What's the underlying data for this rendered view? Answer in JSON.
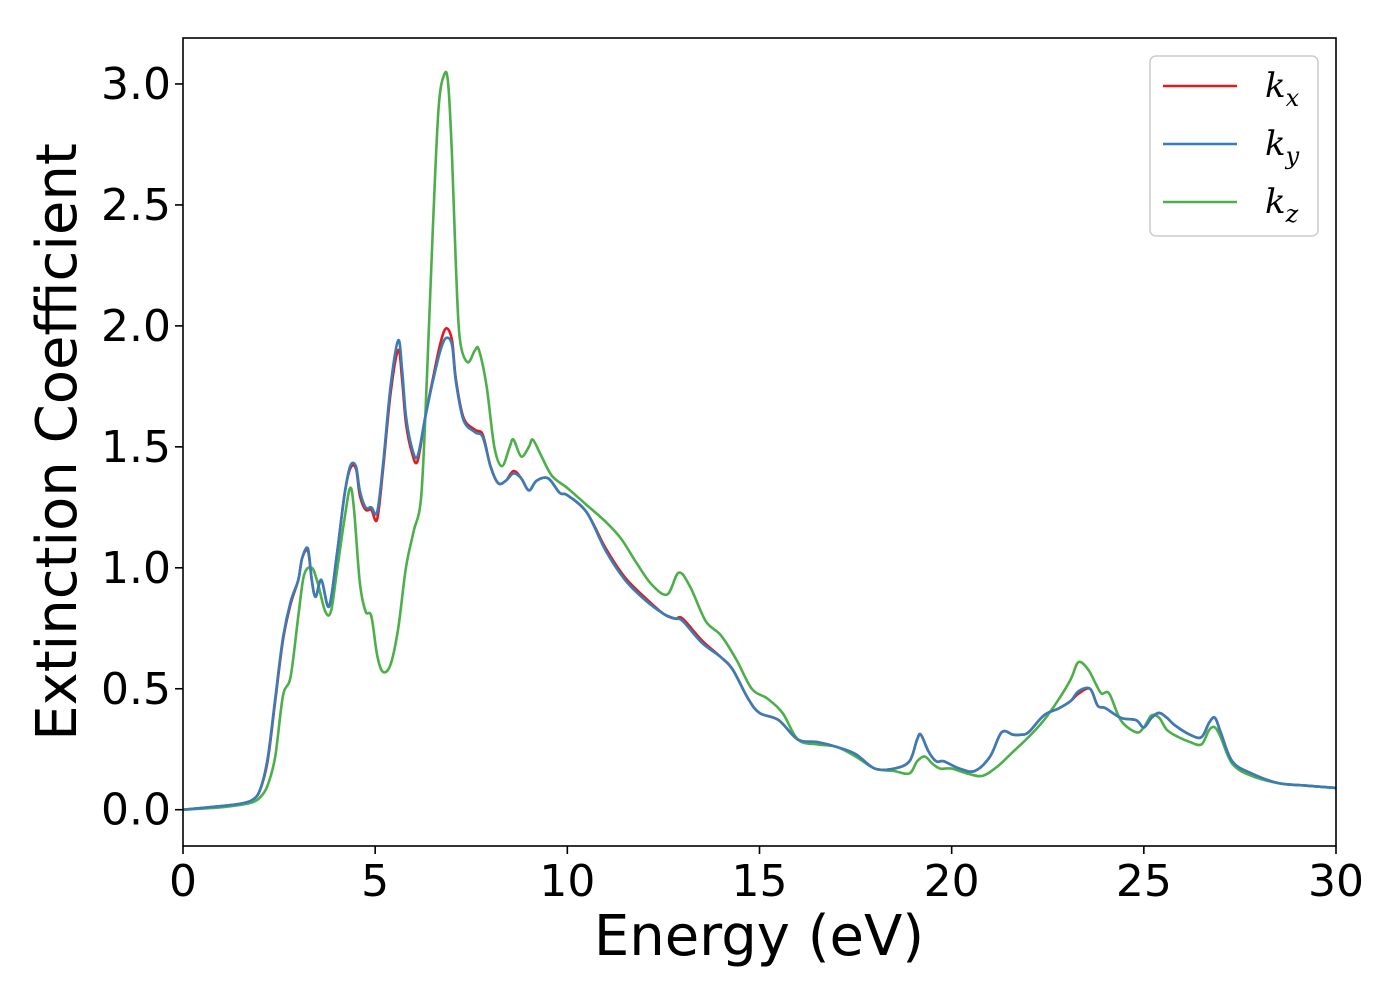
{
  "chart_data": {
    "type": "line",
    "xlabel": "Energy (eV)",
    "ylabel": "Extinction Coefficient",
    "xlim": [
      0,
      30
    ],
    "ylim": [
      -0.15,
      3.19
    ],
    "xticks": [
      "0",
      "5",
      "10",
      "15",
      "20",
      "25",
      "30"
    ],
    "yticks": [
      "0.0",
      "0.5",
      "1.0",
      "1.5",
      "2.0",
      "2.5",
      "3.0"
    ],
    "grid": false,
    "legend_position": "top-right",
    "series": [
      {
        "name": "k_x",
        "legend_base": "k",
        "legend_sub": "x",
        "color": "#e41a1c",
        "x": [
          0,
          1.0,
          1.5,
          1.8,
          2.0,
          2.2,
          2.4,
          2.6,
          2.8,
          3.0,
          3.1,
          3.25,
          3.35,
          3.45,
          3.6,
          3.8,
          4.0,
          4.2,
          4.35,
          4.5,
          4.6,
          4.75,
          4.9,
          5.05,
          5.2,
          5.4,
          5.6,
          5.7,
          5.8,
          5.95,
          6.1,
          6.3,
          6.5,
          6.7,
          6.85,
          7.0,
          7.1,
          7.3,
          7.6,
          7.8,
          8.0,
          8.2,
          8.4,
          8.6,
          8.8,
          9.0,
          9.2,
          9.5,
          9.8,
          10.0,
          10.5,
          11.0,
          11.5,
          12.0,
          12.5,
          12.8,
          13.0,
          13.5,
          14.0,
          14.3,
          14.7,
          15.0,
          15.5,
          16.0,
          16.5,
          17.0,
          17.5,
          18.0,
          18.5,
          18.9,
          19.1,
          19.2,
          19.4,
          19.6,
          19.8,
          20.2,
          20.6,
          21.0,
          21.3,
          21.6,
          21.8,
          22.0,
          22.4,
          22.8,
          23.1,
          23.3,
          23.6,
          23.8,
          24.0,
          24.4,
          24.8,
          25.0,
          25.2,
          25.4,
          25.6,
          25.8,
          26.2,
          26.5,
          26.7,
          26.85,
          27.0,
          27.3,
          27.8,
          28.5,
          29.2,
          30.0
        ],
        "y": [
          0.0,
          0.015,
          0.025,
          0.04,
          0.08,
          0.2,
          0.45,
          0.7,
          0.85,
          0.95,
          1.04,
          1.07,
          0.95,
          0.88,
          0.95,
          0.84,
          1.05,
          1.3,
          1.41,
          1.41,
          1.3,
          1.24,
          1.24,
          1.2,
          1.4,
          1.72,
          1.9,
          1.78,
          1.6,
          1.48,
          1.44,
          1.62,
          1.78,
          1.93,
          1.99,
          1.94,
          1.78,
          1.62,
          1.57,
          1.55,
          1.42,
          1.35,
          1.36,
          1.4,
          1.37,
          1.32,
          1.36,
          1.37,
          1.31,
          1.3,
          1.23,
          1.08,
          0.96,
          0.88,
          0.81,
          0.79,
          0.79,
          0.7,
          0.63,
          0.58,
          0.46,
          0.4,
          0.37,
          0.29,
          0.28,
          0.26,
          0.23,
          0.17,
          0.17,
          0.2,
          0.29,
          0.31,
          0.24,
          0.2,
          0.2,
          0.17,
          0.16,
          0.22,
          0.32,
          0.31,
          0.31,
          0.32,
          0.39,
          0.42,
          0.45,
          0.48,
          0.5,
          0.43,
          0.42,
          0.38,
          0.37,
          0.34,
          0.38,
          0.4,
          0.38,
          0.35,
          0.31,
          0.3,
          0.36,
          0.38,
          0.32,
          0.2,
          0.15,
          0.11,
          0.1,
          0.09
        ]
      },
      {
        "name": "k_y",
        "legend_base": "k",
        "legend_sub": "y",
        "color": "#377eb8",
        "x": [
          0,
          1.0,
          1.5,
          1.8,
          2.0,
          2.2,
          2.4,
          2.6,
          2.8,
          3.0,
          3.1,
          3.25,
          3.35,
          3.45,
          3.6,
          3.8,
          4.0,
          4.2,
          4.35,
          4.5,
          4.6,
          4.75,
          4.9,
          5.05,
          5.2,
          5.4,
          5.6,
          5.7,
          5.8,
          5.95,
          6.1,
          6.3,
          6.5,
          6.7,
          6.85,
          7.0,
          7.1,
          7.3,
          7.6,
          7.8,
          8.0,
          8.2,
          8.4,
          8.6,
          8.8,
          9.0,
          9.2,
          9.5,
          9.8,
          10.0,
          10.5,
          11.0,
          11.5,
          12.0,
          12.5,
          12.8,
          13.0,
          13.5,
          14.0,
          14.3,
          14.7,
          15.0,
          15.5,
          16.0,
          16.5,
          17.0,
          17.5,
          18.0,
          18.5,
          18.9,
          19.1,
          19.2,
          19.4,
          19.6,
          19.8,
          20.2,
          20.6,
          21.0,
          21.3,
          21.6,
          21.8,
          22.0,
          22.4,
          22.8,
          23.1,
          23.3,
          23.6,
          23.8,
          24.0,
          24.4,
          24.8,
          25.0,
          25.2,
          25.4,
          25.6,
          25.8,
          26.2,
          26.5,
          26.7,
          26.85,
          27.0,
          27.3,
          27.8,
          28.5,
          29.2,
          30.0
        ],
        "y": [
          0.0,
          0.015,
          0.025,
          0.04,
          0.08,
          0.21,
          0.46,
          0.71,
          0.86,
          0.95,
          1.04,
          1.08,
          0.95,
          0.88,
          0.95,
          0.84,
          1.05,
          1.3,
          1.42,
          1.42,
          1.32,
          1.25,
          1.25,
          1.23,
          1.42,
          1.75,
          1.94,
          1.82,
          1.63,
          1.5,
          1.46,
          1.62,
          1.77,
          1.9,
          1.95,
          1.92,
          1.77,
          1.61,
          1.56,
          1.54,
          1.42,
          1.35,
          1.36,
          1.39,
          1.37,
          1.32,
          1.36,
          1.37,
          1.31,
          1.3,
          1.23,
          1.07,
          0.95,
          0.87,
          0.81,
          0.79,
          0.78,
          0.69,
          0.63,
          0.58,
          0.46,
          0.4,
          0.37,
          0.29,
          0.28,
          0.26,
          0.23,
          0.17,
          0.17,
          0.2,
          0.29,
          0.31,
          0.24,
          0.2,
          0.2,
          0.17,
          0.16,
          0.22,
          0.32,
          0.31,
          0.31,
          0.32,
          0.39,
          0.42,
          0.45,
          0.49,
          0.5,
          0.43,
          0.42,
          0.38,
          0.37,
          0.34,
          0.38,
          0.4,
          0.38,
          0.35,
          0.31,
          0.3,
          0.36,
          0.38,
          0.32,
          0.2,
          0.15,
          0.11,
          0.1,
          0.09
        ]
      },
      {
        "name": "k_z",
        "legend_base": "k",
        "legend_sub": "z",
        "color": "#4daf4a",
        "x": [
          0,
          1.0,
          1.5,
          1.8,
          2.0,
          2.2,
          2.4,
          2.6,
          2.8,
          3.0,
          3.15,
          3.35,
          3.5,
          3.7,
          3.85,
          4.0,
          4.2,
          4.35,
          4.45,
          4.6,
          4.75,
          4.9,
          5.05,
          5.2,
          5.4,
          5.6,
          5.8,
          6.0,
          6.2,
          6.35,
          6.5,
          6.65,
          6.8,
          6.9,
          7.0,
          7.1,
          7.2,
          7.4,
          7.6,
          7.7,
          7.9,
          8.1,
          8.3,
          8.5,
          8.6,
          8.8,
          9.0,
          9.1,
          9.3,
          9.6,
          10.0,
          10.5,
          11.0,
          11.4,
          11.8,
          12.2,
          12.6,
          12.9,
          13.2,
          13.6,
          14.0,
          14.4,
          14.8,
          15.2,
          15.6,
          16.0,
          16.5,
          17.0,
          17.5,
          18.0,
          18.5,
          18.9,
          19.1,
          19.3,
          19.5,
          19.7,
          20.0,
          20.4,
          20.8,
          21.2,
          21.6,
          22.0,
          22.4,
          22.8,
          23.1,
          23.3,
          23.55,
          23.75,
          23.9,
          24.1,
          24.4,
          24.8,
          25.0,
          25.2,
          25.4,
          25.6,
          25.9,
          26.2,
          26.5,
          26.7,
          26.85,
          27.0,
          27.3,
          27.8,
          28.5,
          29.2,
          30.0
        ],
        "y": [
          0.0,
          0.01,
          0.02,
          0.03,
          0.05,
          0.1,
          0.22,
          0.47,
          0.55,
          0.8,
          0.97,
          1.0,
          0.94,
          0.82,
          0.82,
          0.98,
          1.2,
          1.33,
          1.24,
          0.94,
          0.82,
          0.8,
          0.64,
          0.57,
          0.6,
          0.75,
          1.0,
          1.15,
          1.3,
          1.8,
          2.4,
          2.9,
          3.04,
          3.0,
          2.7,
          2.25,
          1.95,
          1.85,
          1.9,
          1.9,
          1.75,
          1.5,
          1.42,
          1.5,
          1.53,
          1.46,
          1.5,
          1.53,
          1.47,
          1.38,
          1.33,
          1.26,
          1.19,
          1.12,
          1.02,
          0.93,
          0.89,
          0.98,
          0.92,
          0.78,
          0.72,
          0.62,
          0.5,
          0.46,
          0.4,
          0.29,
          0.27,
          0.26,
          0.22,
          0.17,
          0.16,
          0.15,
          0.2,
          0.22,
          0.19,
          0.17,
          0.17,
          0.15,
          0.14,
          0.18,
          0.24,
          0.3,
          0.37,
          0.46,
          0.54,
          0.61,
          0.58,
          0.52,
          0.48,
          0.48,
          0.37,
          0.32,
          0.34,
          0.39,
          0.38,
          0.33,
          0.3,
          0.28,
          0.27,
          0.33,
          0.34,
          0.3,
          0.19,
          0.14,
          0.11,
          0.1,
          0.09
        ]
      }
    ]
  }
}
